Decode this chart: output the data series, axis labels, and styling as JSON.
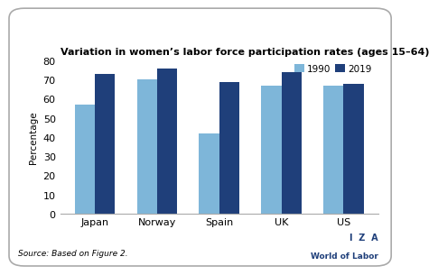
{
  "title": "Variation in women’s labor force participation rates (ages 15–64)",
  "ylabel": "Percentage",
  "categories": [
    "Japan",
    "Norway",
    "Spain",
    "UK",
    "US"
  ],
  "values_1990": [
    57,
    70,
    42,
    67,
    67
  ],
  "values_2019": [
    73,
    76,
    69,
    74,
    68
  ],
  "color_1990": "#7EB6D9",
  "color_2019": "#1F3F7A",
  "ylim": [
    0,
    80
  ],
  "yticks": [
    0,
    10,
    20,
    30,
    40,
    50,
    60,
    70,
    80
  ],
  "legend_labels": [
    "1990",
    "2019"
  ],
  "source_text": "Source: Based on Figure 2.",
  "iza_line1": "I  Z  A",
  "iza_line2": "World of Labor",
  "border_color": "#aaaaaa",
  "background_color": "#FFFFFF",
  "bar_width": 0.32
}
